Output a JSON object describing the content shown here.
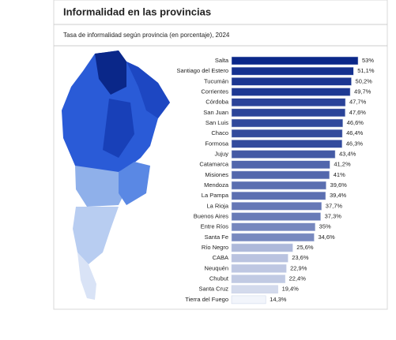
{
  "chart_data": {
    "type": "bar",
    "orientation": "horizontal",
    "title": "Informalidad en las provincias",
    "subtitle": "Tasa de informalidad según provincia (en porcentaje), 2024",
    "categories": [
      "Salta",
      "Santiago del Estero",
      "Tucumán",
      "Corrientes",
      "Córdoba",
      "San Juan",
      "San Luis",
      "Chaco",
      "Formosa",
      "Jujuy",
      "Catamarca",
      "Misiones",
      "Mendoza",
      "La Pampa",
      "La Rioja",
      "Buenos Aires",
      "Entre Ríos",
      "Santa Fe",
      "Río Negro",
      "CABA",
      "Neuquén",
      "Chubut",
      "Santa Cruz",
      "Tierra del Fuego"
    ],
    "values": [
      53,
      51.1,
      50.2,
      49.7,
      47.7,
      47.6,
      46.6,
      46.4,
      46.3,
      43.4,
      41.2,
      41,
      39.6,
      39.4,
      37.7,
      37.3,
      35,
      34.6,
      25.6,
      23.6,
      22.9,
      22.4,
      19.4,
      14.3
    ],
    "value_labels": [
      "53%",
      "51,1%",
      "50,2%",
      "49,7%",
      "47,7%",
      "47,6%",
      "46,6%",
      "46,4%",
      "46,3%",
      "43,4%",
      "41,2%",
      "41%",
      "39,6%",
      "39,4%",
      "37,7%",
      "37,3%",
      "35%",
      "34,6%",
      "25,6%",
      "23,6%",
      "22,9%",
      "22,4%",
      "19,4%",
      "14,3%"
    ],
    "color_scale": [
      "#0a2789",
      "#f2f5fb"
    ]
  }
}
